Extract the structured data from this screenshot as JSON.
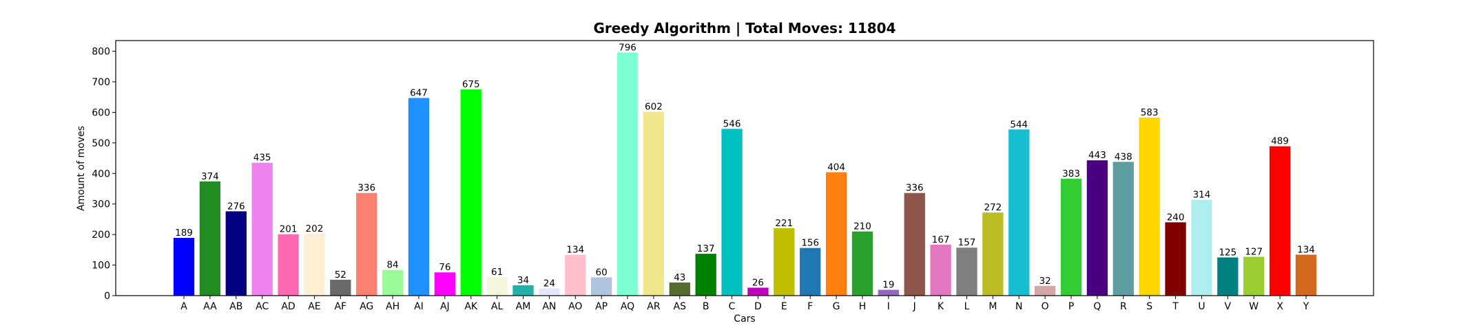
{
  "chart_data": {
    "type": "bar",
    "title": "Greedy Algorithm | Total Moves: 11804",
    "xlabel": "Cars",
    "ylabel": "Amount of moves",
    "ylim": [
      0,
      835
    ],
    "yticks": [
      0,
      100,
      200,
      300,
      400,
      500,
      600,
      700,
      800
    ],
    "grid": false,
    "categories": [
      "A",
      "AA",
      "AB",
      "AC",
      "AD",
      "AE",
      "AF",
      "AG",
      "AH",
      "AI",
      "AJ",
      "AK",
      "AL",
      "AM",
      "AN",
      "AO",
      "AP",
      "AQ",
      "AR",
      "AS",
      "B",
      "C",
      "D",
      "E",
      "F",
      "G",
      "H",
      "I",
      "J",
      "K",
      "L",
      "M",
      "N",
      "O",
      "P",
      "Q",
      "R",
      "S",
      "T",
      "U",
      "V",
      "W",
      "X",
      "Y"
    ],
    "values": [
      189,
      374,
      276,
      435,
      201,
      202,
      52,
      336,
      84,
      647,
      76,
      675,
      61,
      34,
      24,
      134,
      60,
      796,
      602,
      43,
      137,
      546,
      26,
      221,
      156,
      404,
      210,
      19,
      336,
      167,
      157,
      272,
      544,
      32,
      383,
      443,
      438,
      583,
      240,
      314,
      125,
      127,
      489,
      134
    ],
    "colors": [
      "#0000ff",
      "#228b22",
      "#000080",
      "#ee82ee",
      "#ff69b4",
      "#ffefd5",
      "#696969",
      "#fa8072",
      "#98fb98",
      "#1e90ff",
      "#ff00ff",
      "#00ff00",
      "#f5f5dc",
      "#20b2aa",
      "#e6e6fa",
      "#ffc0cb",
      "#b0c4de",
      "#7fffd4",
      "#f0e68c",
      "#556b2f",
      "#008000",
      "#00bfbf",
      "#bf00bf",
      "#bfbf00",
      "#1f77b4",
      "#ff7f0e",
      "#2ca02c",
      "#9467bd",
      "#8c564b",
      "#e377c2",
      "#7f7f7f",
      "#bcbd22",
      "#17becf",
      "#d4a5a5",
      "#32cd32",
      "#4b0082",
      "#5f9ea0",
      "#ffd700",
      "#800000",
      "#afeeee",
      "#008080",
      "#9acd32",
      "#ff0000",
      "#d2691e"
    ]
  }
}
